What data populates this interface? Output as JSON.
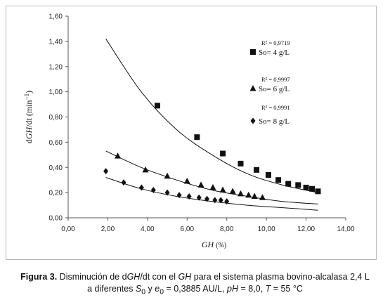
{
  "chart_data": {
    "type": "scatter",
    "xlabel": "GH (%)",
    "xlabel_italic": "GH",
    "xlabel_unit": "(%)",
    "ylabel": "dGH/dt (min−1)",
    "ylabel_parts": [
      "d",
      "GH",
      "/dt (min",
      "−1",
      ")"
    ],
    "xlim": [
      0,
      14
    ],
    "ylim": [
      0,
      1.6
    ],
    "x_ticks": [
      0,
      2,
      4,
      6,
      8,
      10,
      12,
      14
    ],
    "x_tick_labels": [
      "0,00",
      "2,00",
      "4,00",
      "6,00",
      "8,00",
      "10,00",
      "12,00",
      "14,00"
    ],
    "y_ticks": [
      0,
      0.2,
      0.4,
      0.6,
      0.8,
      1.0,
      1.2,
      1.4,
      1.6
    ],
    "y_tick_labels": [
      "0,00",
      "0,20",
      "0,40",
      "0,60",
      "0,80",
      "1,00",
      "1,20",
      "1,40",
      "1,60"
    ],
    "grid": false,
    "series": [
      {
        "name": "So= 4 g/L",
        "r2": "R² = 0,9719",
        "marker": "square",
        "x": [
          4.5,
          6.5,
          7.8,
          8.7,
          9.5,
          10.1,
          10.6,
          11.1,
          11.6,
          12.0,
          12.3,
          12.6
        ],
        "y": [
          0.89,
          0.64,
          0.51,
          0.43,
          0.38,
          0.34,
          0.3,
          0.27,
          0.26,
          0.24,
          0.23,
          0.21
        ],
        "trend": {
          "x_from": 1.9,
          "x_to": 12.6,
          "y": [
            1.42,
            1.0,
            0.7,
            0.5,
            0.35,
            0.26,
            0.2
          ]
        }
      },
      {
        "name": "So= 6 g/L",
        "r2": "R² = 0,9997",
        "marker": "triangle",
        "x": [
          2.5,
          3.9,
          5.0,
          6.0,
          6.7,
          7.3,
          7.8,
          8.3,
          8.7,
          9.1,
          9.4,
          9.8
        ],
        "y": [
          0.49,
          0.38,
          0.33,
          0.29,
          0.26,
          0.24,
          0.22,
          0.21,
          0.19,
          0.18,
          0.17,
          0.16
        ],
        "trend": {
          "x_from": 1.9,
          "x_to": 12.6,
          "y": [
            0.53,
            0.4,
            0.3,
            0.22,
            0.17,
            0.13,
            0.11
          ]
        }
      },
      {
        "name": "So= 8 g/L",
        "r2": "R² = 0,9991",
        "marker": "diamond",
        "x": [
          1.9,
          2.8,
          3.7,
          4.3,
          5.0,
          5.6,
          6.1,
          6.6,
          7.0,
          7.4,
          7.7,
          8.0
        ],
        "y": [
          0.37,
          0.28,
          0.24,
          0.22,
          0.2,
          0.18,
          0.17,
          0.16,
          0.15,
          0.14,
          0.14,
          0.13
        ],
        "trend": {
          "x_from": 1.9,
          "x_to": 12.6,
          "y": [
            0.32,
            0.23,
            0.17,
            0.13,
            0.1,
            0.08,
            0.06
          ]
        }
      }
    ]
  },
  "caption": {
    "label": "Figura 3.",
    "line1_pre": " Disminución de d",
    "line1_it": "GH",
    "line1_mid": "/dt con el ",
    "line1_it2": "GH",
    "line1_post": " para el sistema plasma bovino-alcalasa 2,4 L",
    "line2_pre": "a diferentes ",
    "line2_s": "S",
    "line2_s_sub": "0",
    "line2_y": " y ",
    "line2_e": "e",
    "line2_e_sub": "0",
    "line2_eq": " = 0,3885 AU/L, ",
    "line2_ph": "pH",
    "line2_ph_val": " = 8,0, ",
    "line2_t": "T",
    "line2_t_val": " = 55 °C"
  }
}
